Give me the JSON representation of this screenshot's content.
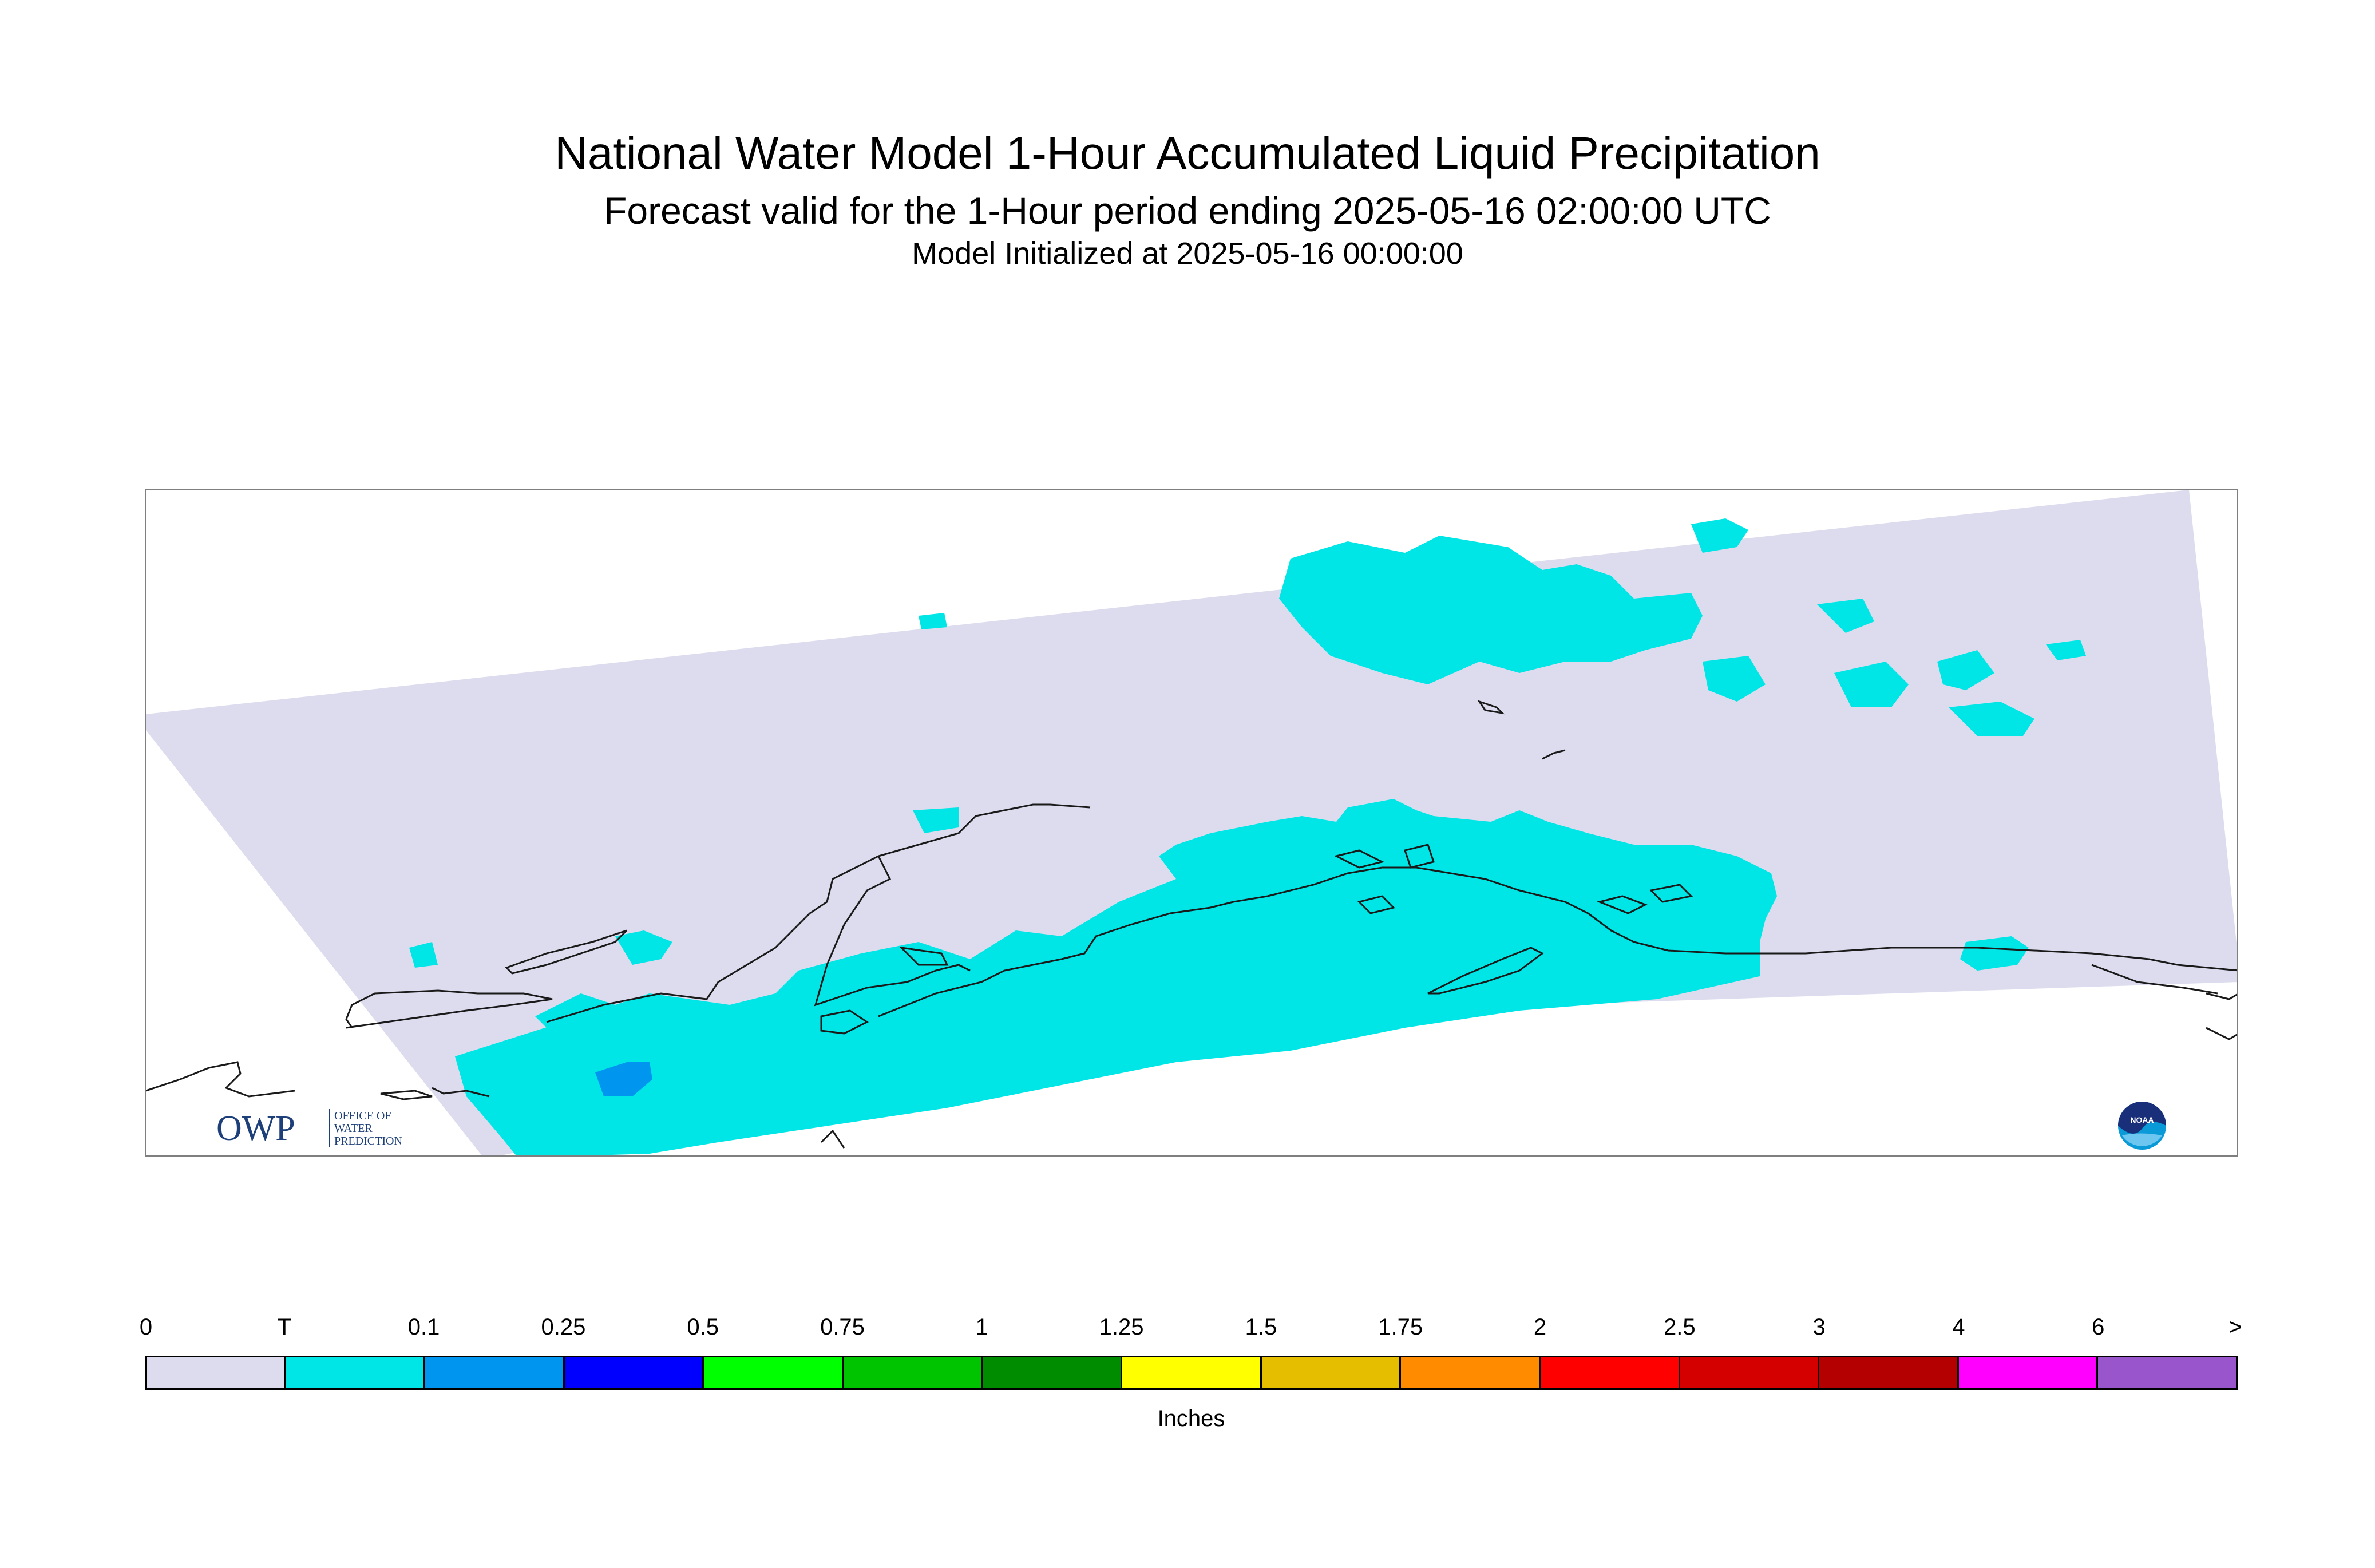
{
  "header": {
    "title": "National Water Model 1-Hour Accumulated Liquid Precipitation",
    "subtitle": "Forecast valid for the 1-Hour period ending 2025-05-16 02:00:00 UTC",
    "init_line": "Model Initialized at 2025-05-16 00:00:00"
  },
  "map": {
    "region": "Alaska",
    "domain_fill_color": "#dcdcee",
    "precip_trace_color": "#00e5e5",
    "precip_light_color": "#0096f0",
    "coastline_color": "#1a1a1a"
  },
  "logos": {
    "owp": {
      "mark": "OWP",
      "lines": [
        "OFFICE OF",
        "WATER",
        "PREDICTION"
      ]
    },
    "noaa": {
      "mark": "NOAA"
    }
  },
  "legend": {
    "units": "Inches",
    "ticks": [
      "0",
      "T",
      "0.1",
      "0.25",
      "0.5",
      "0.75",
      "1",
      "1.25",
      "1.5",
      "1.75",
      "2",
      "2.5",
      "3",
      "4",
      "6",
      ">"
    ],
    "colors": [
      "#dcdcee",
      "#00e5e5",
      "#0096f0",
      "#0000ff",
      "#00ff00",
      "#00c400",
      "#008c00",
      "#ffff00",
      "#e5be00",
      "#ff8c00",
      "#ff0000",
      "#d40000",
      "#b40000",
      "#ff00ff",
      "#9955cc"
    ]
  }
}
